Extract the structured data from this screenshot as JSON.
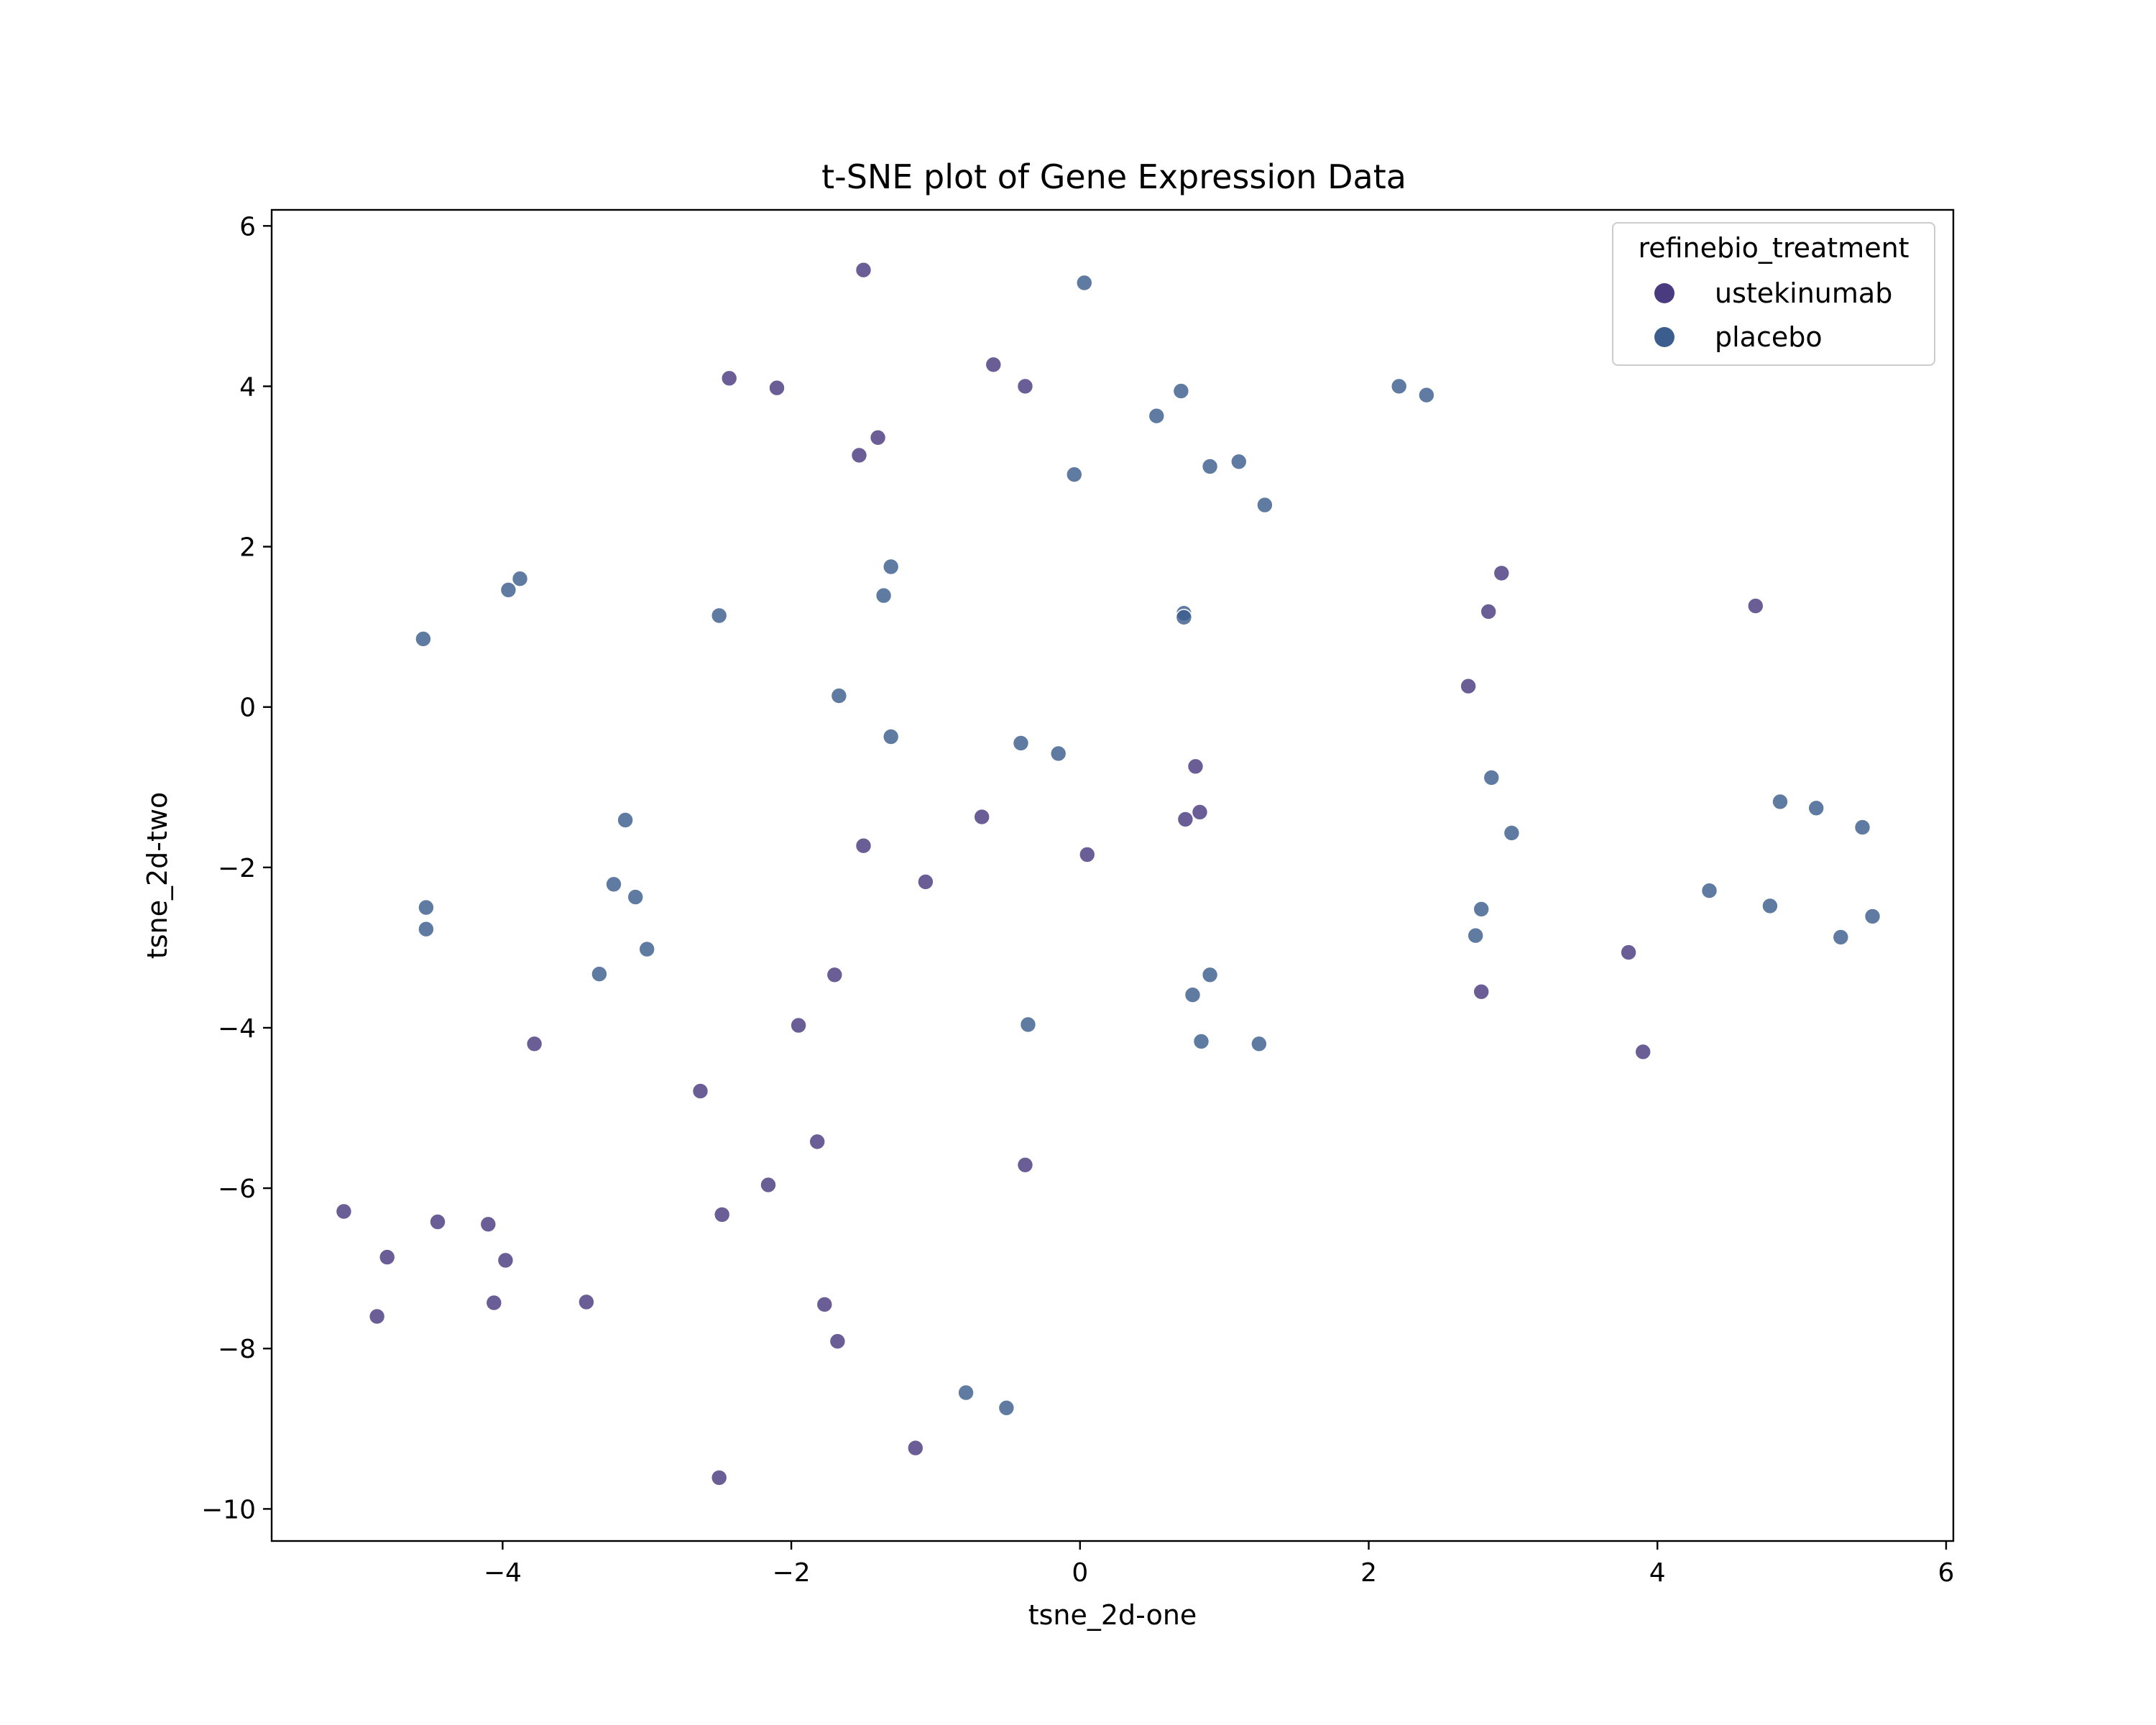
{
  "chart_data": {
    "type": "scatter",
    "title": "t-SNE plot of Gene Expression Data",
    "xlabel": "tsne_2d-one",
    "ylabel": "tsne_2d-two",
    "xlim": [
      -5.6,
      6.05
    ],
    "ylim": [
      -10.4,
      6.2
    ],
    "xticks": [
      -4,
      -2,
      0,
      2,
      4,
      6
    ],
    "yticks": [
      -10,
      -8,
      -6,
      -4,
      -2,
      0,
      2,
      4,
      6
    ],
    "grid": false,
    "legend": {
      "title": "refinebio_treatment",
      "placement": "top-right"
    },
    "series": [
      {
        "name": "ustekinumab",
        "color": "#4a3b80",
        "points": [
          [
            -1.5,
            5.45
          ],
          [
            -2.43,
            4.1
          ],
          [
            -2.1,
            3.98
          ],
          [
            -0.6,
            4.27
          ],
          [
            -0.38,
            4.0
          ],
          [
            -1.4,
            3.36
          ],
          [
            -1.53,
            3.14
          ],
          [
            2.92,
            1.67
          ],
          [
            2.83,
            1.19
          ],
          [
            4.68,
            1.26
          ],
          [
            2.69,
            0.26
          ],
          [
            0.8,
            -0.74
          ],
          [
            -0.68,
            -1.37
          ],
          [
            0.83,
            -1.31
          ],
          [
            0.73,
            -1.4
          ],
          [
            -1.5,
            -1.73
          ],
          [
            0.05,
            -1.84
          ],
          [
            -1.07,
            -2.18
          ],
          [
            -1.7,
            -3.34
          ],
          [
            3.8,
            -3.06
          ],
          [
            2.78,
            -3.55
          ],
          [
            -1.95,
            -3.97
          ],
          [
            -3.78,
            -4.2
          ],
          [
            3.9,
            -4.3
          ],
          [
            -2.63,
            -4.79
          ],
          [
            -1.82,
            -5.42
          ],
          [
            -0.38,
            -5.71
          ],
          [
            -2.16,
            -5.96
          ],
          [
            -2.48,
            -6.33
          ],
          [
            -5.1,
            -6.29
          ],
          [
            -4.45,
            -6.42
          ],
          [
            -4.1,
            -6.45
          ],
          [
            -4.8,
            -6.86
          ],
          [
            -3.98,
            -6.9
          ],
          [
            -4.06,
            -7.43
          ],
          [
            -3.42,
            -7.42
          ],
          [
            -1.77,
            -7.45
          ],
          [
            -4.87,
            -7.6
          ],
          [
            -1.68,
            -7.91
          ],
          [
            -1.14,
            -9.24
          ],
          [
            -2.5,
            -9.61
          ]
        ]
      },
      {
        "name": "placebo",
        "color": "#3c5e8e",
        "points": [
          [
            0.03,
            5.29
          ],
          [
            0.7,
            3.94
          ],
          [
            0.53,
            3.63
          ],
          [
            2.21,
            4.0
          ],
          [
            2.4,
            3.89
          ],
          [
            -0.04,
            2.9
          ],
          [
            0.9,
            3.0
          ],
          [
            1.1,
            3.06
          ],
          [
            1.28,
            2.52
          ],
          [
            -1.31,
            1.75
          ],
          [
            -3.88,
            1.6
          ],
          [
            -3.96,
            1.46
          ],
          [
            -1.36,
            1.39
          ],
          [
            -2.5,
            1.14
          ],
          [
            0.72,
            1.17
          ],
          [
            0.72,
            1.12
          ],
          [
            -4.55,
            0.85
          ],
          [
            -1.67,
            0.14
          ],
          [
            -1.31,
            -0.37
          ],
          [
            -0.41,
            -0.45
          ],
          [
            -0.15,
            -0.58
          ],
          [
            2.85,
            -0.88
          ],
          [
            4.85,
            -1.18
          ],
          [
            5.1,
            -1.26
          ],
          [
            5.42,
            -1.5
          ],
          [
            2.99,
            -1.57
          ],
          [
            -3.15,
            -1.41
          ],
          [
            -3.23,
            -2.21
          ],
          [
            -3.08,
            -2.37
          ],
          [
            4.36,
            -2.29
          ],
          [
            -4.53,
            -2.5
          ],
          [
            2.78,
            -2.52
          ],
          [
            4.78,
            -2.48
          ],
          [
            5.49,
            -2.61
          ],
          [
            -4.53,
            -2.77
          ],
          [
            2.74,
            -2.85
          ],
          [
            5.27,
            -2.87
          ],
          [
            -3.0,
            -3.02
          ],
          [
            -3.33,
            -3.33
          ],
          [
            0.9,
            -3.34
          ],
          [
            0.78,
            -3.59
          ],
          [
            -0.36,
            -3.96
          ],
          [
            0.84,
            -4.17
          ],
          [
            1.24,
            -4.2
          ],
          [
            -0.79,
            -8.55
          ],
          [
            -0.51,
            -8.74
          ]
        ]
      }
    ]
  }
}
